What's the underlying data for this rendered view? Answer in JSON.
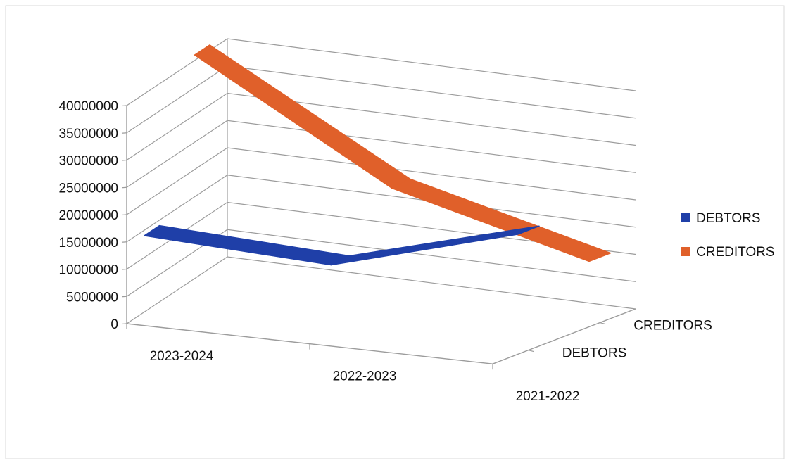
{
  "chart_data": {
    "type": "line",
    "subtype": "3d-line",
    "title": "",
    "xlabel": "",
    "ylabel": "",
    "ylim": [
      0,
      40000000
    ],
    "y_ticks": [
      "0",
      "5000000",
      "10000000",
      "15000000",
      "20000000",
      "25000000",
      "30000000",
      "35000000",
      "40000000"
    ],
    "y_tick_values": [
      0,
      5000000,
      10000000,
      15000000,
      20000000,
      25000000,
      30000000,
      35000000,
      40000000
    ],
    "categories": [
      "2023-2024",
      "2022-2023",
      "2021-2022"
    ],
    "depth_labels": [
      "DEBTORS",
      "CREDITORS"
    ],
    "grid": true,
    "legend_position": "right",
    "series": [
      {
        "name": "DEBTORS",
        "color": "#1f3fa8",
        "values": [
          14000000,
          12500000,
          22000000
        ]
      },
      {
        "name": "CREDITORS",
        "color": "#e0602a",
        "values": [
          41000000,
          21000000,
          12000000
        ]
      }
    ]
  }
}
